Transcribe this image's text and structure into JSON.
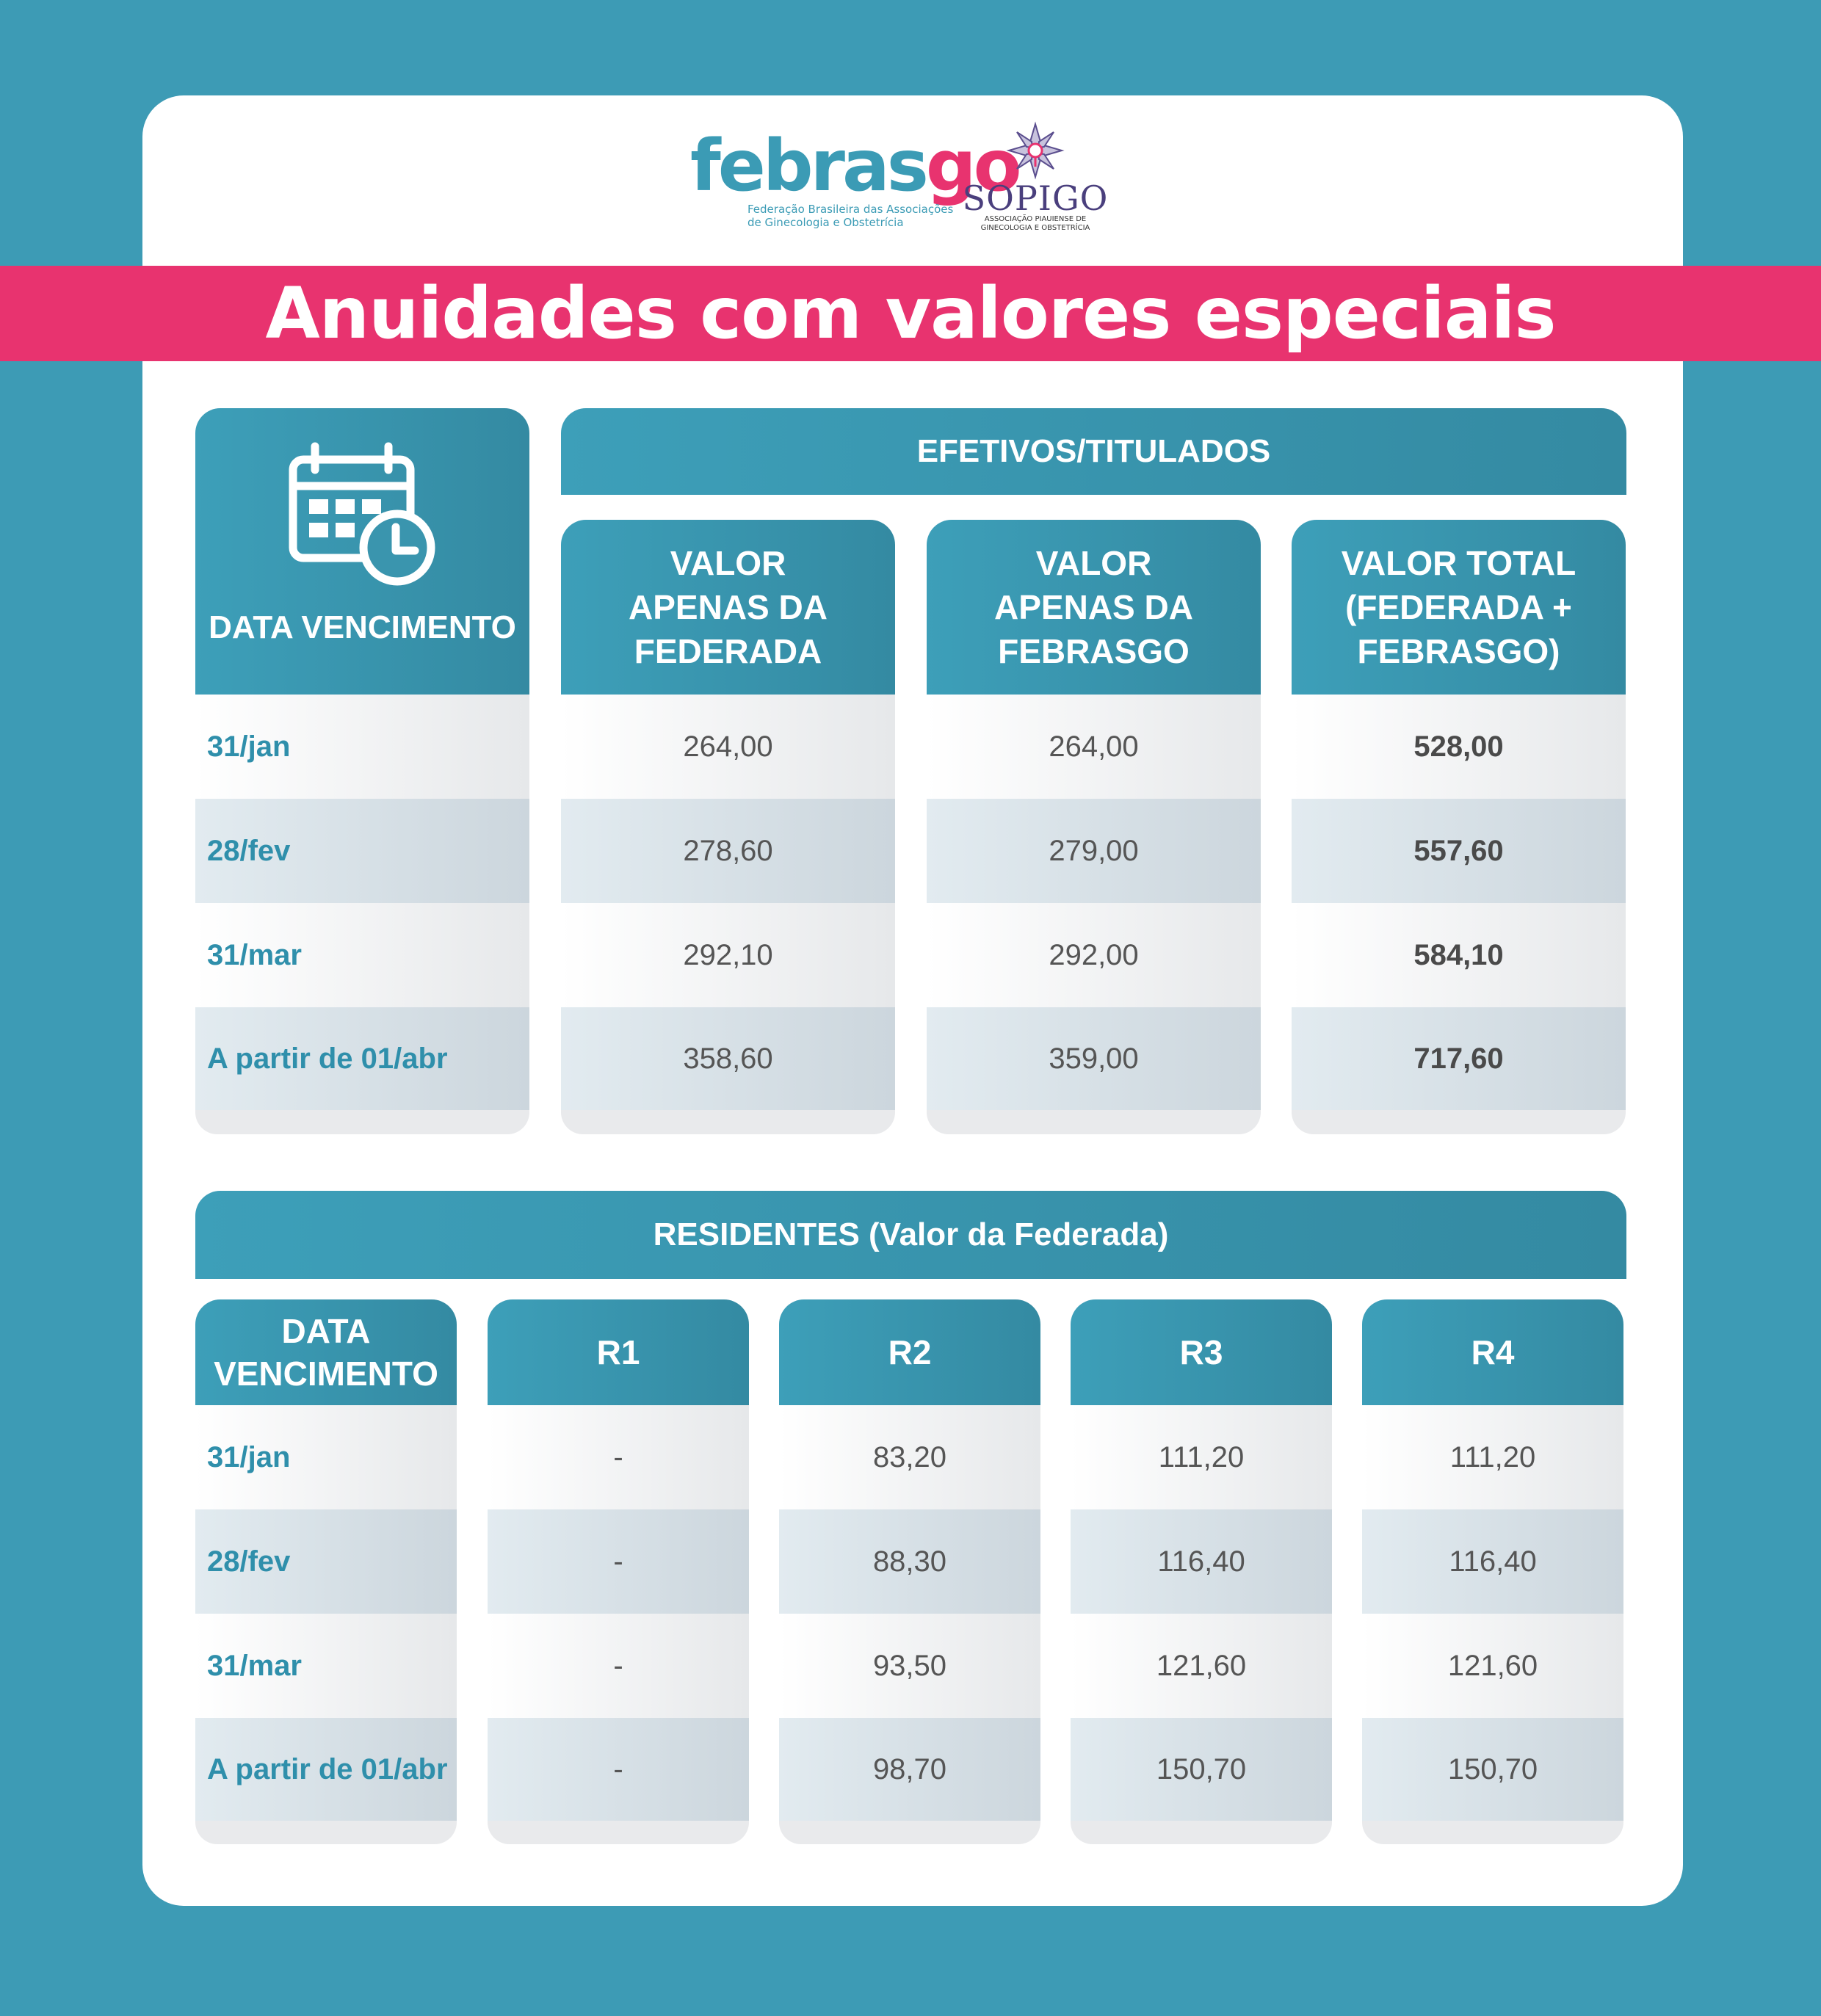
{
  "header": {
    "febrasgo_word_a": "febras",
    "febrasgo_word_b": "go",
    "febrasgo_sub": "Federação Brasileira das Associações de Ginecologia e Obstetrícia",
    "sopigo_name": "SOPIGO",
    "sopigo_sub": "ASSOCIAÇÃO PIAUIENSE DE GINECOLOGIA E OBSTETRÍCIA",
    "title": "Anuidades com valores especiais"
  },
  "efetivos": {
    "group_title": "EFETIVOS/TITULADOS",
    "date_header": "DATA VENCIMENTO",
    "columns": [
      "VALOR APENAS DA FEDERADA",
      "VALOR APENAS DA FEBRASGO",
      "VALOR TOTAL (FEDERADA + FEBRASGO)"
    ],
    "rows": [
      {
        "date": "31/jan",
        "federada": "264,00",
        "febrasgo": "264,00",
        "total": "528,00"
      },
      {
        "date": "28/fev",
        "federada": "278,60",
        "febrasgo": "279,00",
        "total": "557,60"
      },
      {
        "date": "31/mar",
        "federada": "292,10",
        "febrasgo": "292,00",
        "total": "584,10"
      },
      {
        "date": "A partir de 01/abr",
        "federada": "358,60",
        "febrasgo": "359,00",
        "total": "717,60"
      }
    ]
  },
  "residentes": {
    "group_title": "RESIDENTES (Valor da Federada)",
    "date_header": "DATA VENCIMENTO",
    "columns": [
      "R1",
      "R2",
      "R3",
      "R4"
    ],
    "rows": [
      {
        "date": "31/jan",
        "r1": "-",
        "r2": "83,20",
        "r3": "111,20",
        "r4": "111,20"
      },
      {
        "date": "28/fev",
        "r1": "-",
        "r2": "88,30",
        "r3": "116,40",
        "r4": "116,40"
      },
      {
        "date": "31/mar",
        "r1": "-",
        "r2": "93,50",
        "r3": "121,60",
        "r4": "121,60"
      },
      {
        "date": "A partir de 01/abr",
        "r1": "-",
        "r2": "98,70",
        "r3": "150,70",
        "r4": "150,70"
      }
    ]
  },
  "icons": {
    "calendar": "calendar-clock-icon"
  }
}
